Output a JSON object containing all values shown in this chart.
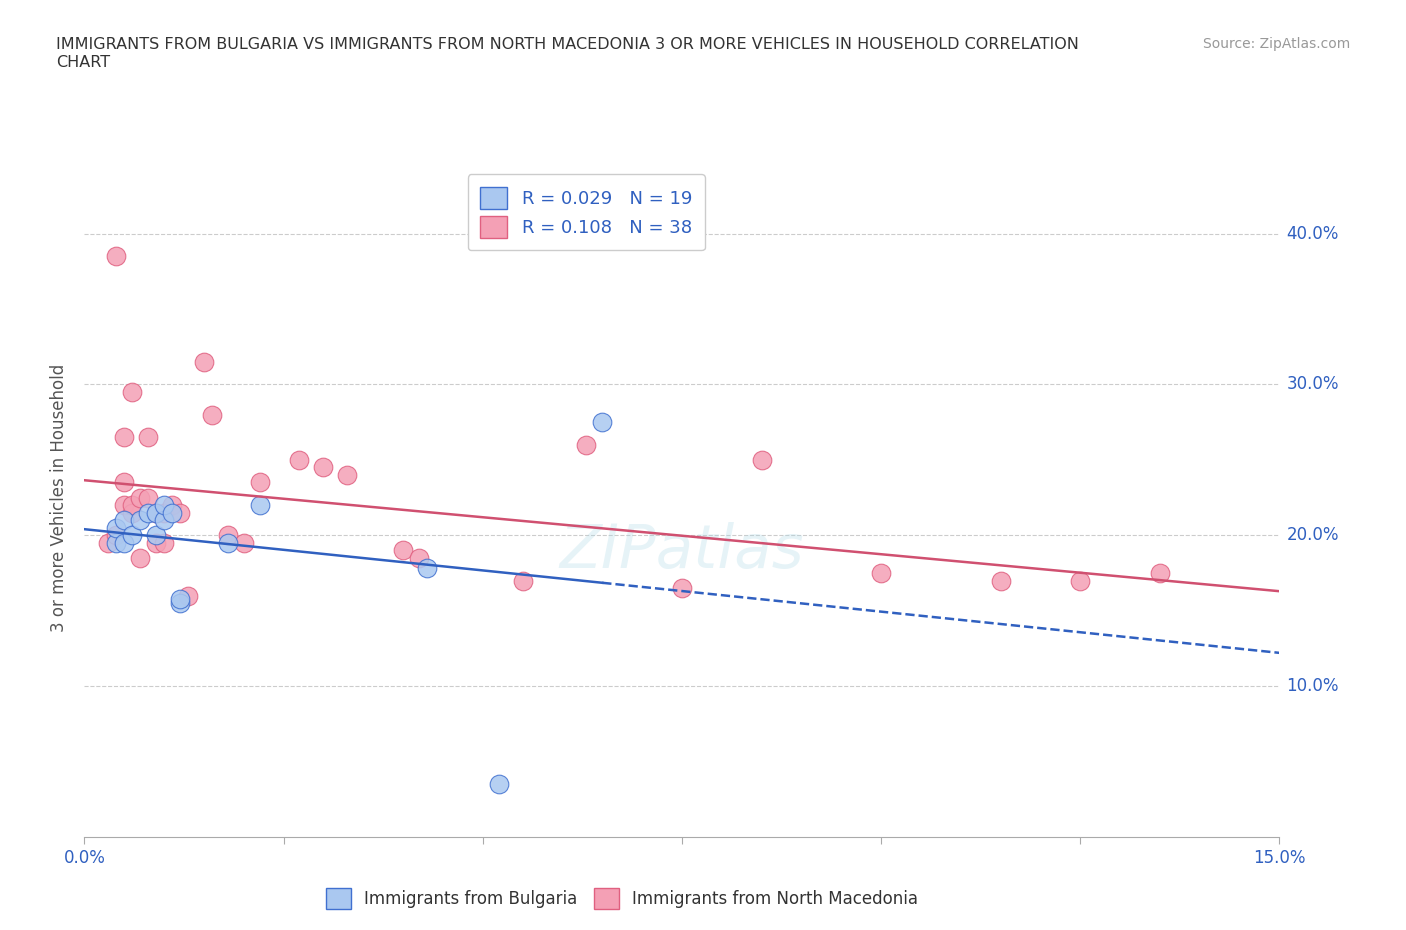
{
  "title": "IMMIGRANTS FROM BULGARIA VS IMMIGRANTS FROM NORTH MACEDONIA 3 OR MORE VEHICLES IN HOUSEHOLD CORRELATION\nCHART",
  "source": "Source: ZipAtlas.com",
  "ylabel": "3 or more Vehicles in Household",
  "xlim": [
    0.0,
    0.15
  ],
  "ylim": [
    0.0,
    0.45
  ],
  "xtick_positions": [
    0.0,
    0.025,
    0.05,
    0.075,
    0.1,
    0.125,
    0.15
  ],
  "xticklabels": [
    "0.0%",
    "",
    "",
    "",
    "",
    "",
    "15.0%"
  ],
  "ytick_positions": [
    0.0,
    0.1,
    0.2,
    0.3,
    0.4
  ],
  "yticklabels": [
    "",
    "10.0%",
    "20.0%",
    "30.0%",
    "40.0%"
  ],
  "bulgaria_color": "#aac8f0",
  "macedonia_color": "#f4a0b5",
  "bulgaria_edge_color": "#4070d0",
  "macedonia_edge_color": "#e06080",
  "bulgaria_line_color": "#3060c0",
  "macedonia_line_color": "#d05070",
  "watermark": "ZIPatlas",
  "legend_R_bulgaria": "0.029",
  "legend_N_bulgaria": "19",
  "legend_R_macedonia": "0.108",
  "legend_N_macedonia": "38",
  "bulgaria_x": [
    0.004,
    0.004,
    0.005,
    0.005,
    0.006,
    0.007,
    0.008,
    0.009,
    0.009,
    0.01,
    0.01,
    0.011,
    0.012,
    0.012,
    0.018,
    0.022,
    0.043,
    0.052,
    0.065
  ],
  "bulgaria_y": [
    0.195,
    0.205,
    0.21,
    0.195,
    0.2,
    0.21,
    0.215,
    0.2,
    0.215,
    0.21,
    0.22,
    0.215,
    0.155,
    0.158,
    0.195,
    0.22,
    0.178,
    0.035,
    0.275
  ],
  "macedonia_x": [
    0.003,
    0.004,
    0.004,
    0.005,
    0.005,
    0.005,
    0.006,
    0.006,
    0.006,
    0.007,
    0.007,
    0.008,
    0.008,
    0.009,
    0.009,
    0.01,
    0.01,
    0.011,
    0.012,
    0.013,
    0.015,
    0.016,
    0.018,
    0.02,
    0.022,
    0.027,
    0.03,
    0.033,
    0.04,
    0.042,
    0.055,
    0.063,
    0.075,
    0.085,
    0.1,
    0.115,
    0.125,
    0.135
  ],
  "macedonia_y": [
    0.195,
    0.385,
    0.2,
    0.22,
    0.235,
    0.265,
    0.215,
    0.22,
    0.295,
    0.185,
    0.225,
    0.225,
    0.265,
    0.195,
    0.215,
    0.195,
    0.215,
    0.22,
    0.215,
    0.16,
    0.315,
    0.28,
    0.2,
    0.195,
    0.235,
    0.25,
    0.245,
    0.24,
    0.19,
    0.185,
    0.17,
    0.26,
    0.165,
    0.25,
    0.175,
    0.17,
    0.17,
    0.175
  ]
}
